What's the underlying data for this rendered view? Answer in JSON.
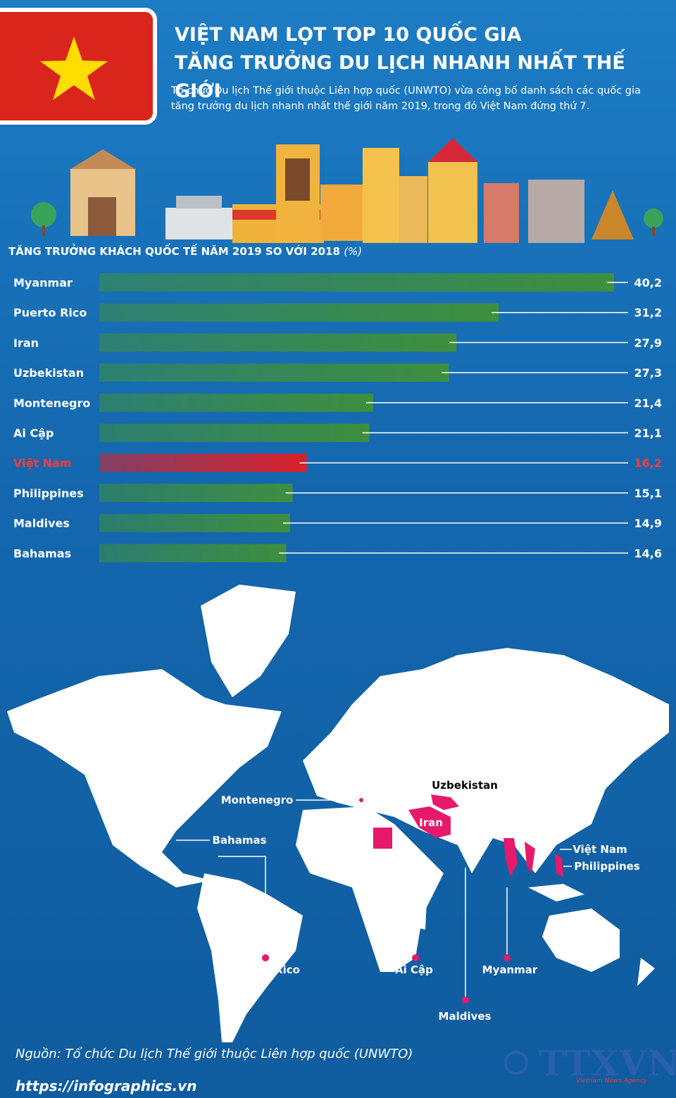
{
  "header": {
    "title_lines": [
      "VIỆT NAM LỌT TOP 10 QUỐC GIA",
      "TĂNG TRƯỞNG DU LỊCH NHANH NHẤT THẾ GIỚI"
    ],
    "description": "Tổ chức Du lịch Thế giới thuộc Liên hợp quốc (UNWTO) vừa công bố danh sách các quốc gia tăng trưởng du lịch nhanh nhất thế giới năm 2019, trong đó Việt Nam đứng thứ 7."
  },
  "chart_data": {
    "type": "bar",
    "orientation": "horizontal",
    "title": "TĂNG TRƯỞNG KHÁCH QUỐC TẾ NĂM 2019 SO VỚI 2018",
    "title_unit": "(%)",
    "categories": [
      "Myanmar",
      "Puerto Rico",
      "Iran",
      "Uzbekistan",
      "Montenegro",
      "Ai Cập",
      "Việt Nam",
      "Philippines",
      "Maldives",
      "Bahamas"
    ],
    "values": [
      40.2,
      31.2,
      27.9,
      27.3,
      21.4,
      21.1,
      16.2,
      15.1,
      14.9,
      14.6
    ],
    "value_labels": [
      "40,2",
      "31,2",
      "27,9",
      "27,3",
      "21,4",
      "21,1",
      "16,2",
      "15,1",
      "14,9",
      "14,6"
    ],
    "colors": [
      "#3e8f3e",
      "#3e8f3e",
      "#3e8f3e",
      "#3e8f3e",
      "#3e8f3e",
      "#3e8f3e",
      "#d8202a",
      "#3e8f3e",
      "#3e8f3e",
      "#3e8f3e"
    ]
  },
  "map": {
    "labels": [
      "Uzbekistan",
      "Iran",
      "Montenegro",
      "Bahamas",
      "Việt Nam",
      "Philippines",
      "Puerto Rico",
      "Ai Cập",
      "Myanmar",
      "Maldives"
    ]
  },
  "footer": {
    "source": "Nguồn: Tổ chức Du lịch Thế giới thuộc Liên hợp quốc (UNWTO)",
    "website": "https://infographics.vn",
    "logo": "TTXVN",
    "agency": "Vietnam News Agency"
  }
}
